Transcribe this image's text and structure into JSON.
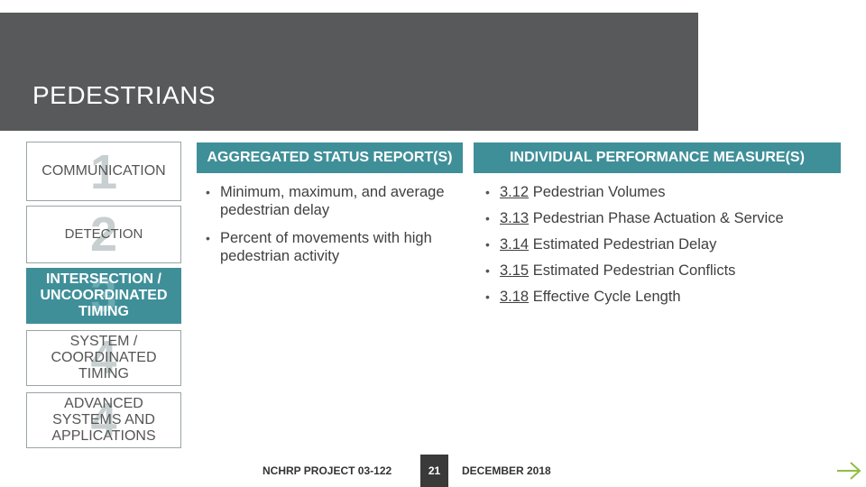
{
  "header": {
    "title": "PEDESTRIANS"
  },
  "sidebar": {
    "items": [
      {
        "number": "1",
        "label": "COMMUNICATION"
      },
      {
        "number": "2",
        "label": "DETECTION"
      },
      {
        "number": "3",
        "label": "INTERSECTION / UNCOORDINATED TIMING"
      },
      {
        "number": "4",
        "label": "SYSTEM / COORDINATED TIMING"
      },
      {
        "number": "4",
        "label": "ADVANCED SYSTEMS AND APPLICATIONS"
      }
    ]
  },
  "aggregated": {
    "header": "AGGREGATED STATUS REPORT(S)",
    "bullets": [
      "Minimum, maximum, and average pedestrian delay",
      "Percent of movements with high pedestrian activity"
    ]
  },
  "individual": {
    "header": "INDIVIDUAL PERFORMANCE MEASURE(S)",
    "measures": [
      {
        "ref": "3.12",
        "label": "Pedestrian Volumes"
      },
      {
        "ref": "3.13",
        "label": "Pedestrian Phase Actuation & Service"
      },
      {
        "ref": "3.14",
        "label": "Estimated Pedestrian Delay"
      },
      {
        "ref": "3.15",
        "label": "Estimated Pedestrian Conflicts"
      },
      {
        "ref": "3.18",
        "label": "Effective Cycle Length"
      }
    ]
  },
  "footer": {
    "project": "NCHRP PROJECT 03-122",
    "page": "21",
    "date": "DECEMBER 2018"
  },
  "colors": {
    "header_band": "#58595b",
    "accent_teal": "#3f8f99",
    "footer_page_box": "#3a3a3a",
    "arrow": "#8fbf3f"
  },
  "icons": {
    "next": "arrow-right-icon"
  }
}
